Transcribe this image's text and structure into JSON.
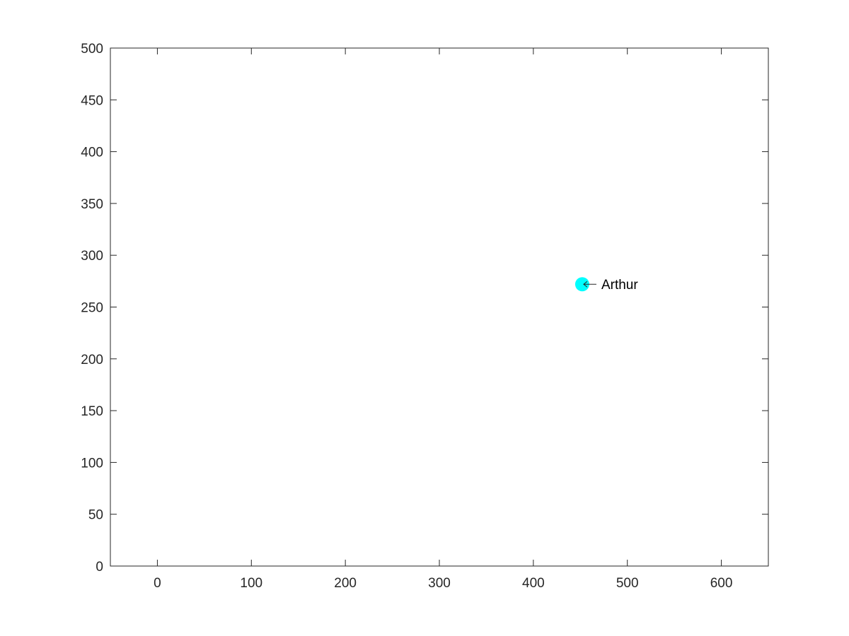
{
  "chart_data": {
    "type": "scatter",
    "title": "",
    "xlabel": "",
    "ylabel": "",
    "xlim": [
      -50,
      650
    ],
    "ylim": [
      0,
      500
    ],
    "xticks": [
      0,
      100,
      200,
      300,
      400,
      500,
      600
    ],
    "yticks": [
      0,
      50,
      100,
      150,
      200,
      250,
      300,
      350,
      400,
      450,
      500
    ],
    "grid": false,
    "legend": "none",
    "points": [
      {
        "x": 452,
        "y": 272,
        "label": "Arthur",
        "color": "#00ffff"
      }
    ]
  }
}
